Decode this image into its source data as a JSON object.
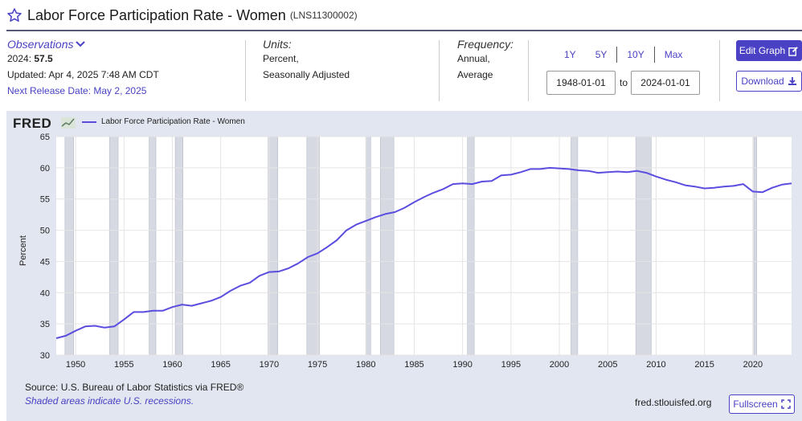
{
  "header": {
    "title": "Labor Force Participation Rate - Women",
    "series_id": "(LNS11300002)",
    "star_icon": "star-outline-icon"
  },
  "observations": {
    "heading": "Observations",
    "latest_label": "2024:",
    "latest_value": "57.5",
    "updated": "Updated: Apr 4, 2025 7:48 AM CDT",
    "next_release": "Next Release Date: May 2, 2025"
  },
  "units": {
    "heading": "Units:",
    "line1": "Percent,",
    "line2": "Seasonally Adjusted"
  },
  "frequency": {
    "heading": "Frequency:",
    "line1": "Annual,",
    "line2": "Average"
  },
  "range": {
    "links": [
      "1Y",
      "5Y",
      "10Y",
      "Max"
    ],
    "start": "1948-01-01",
    "to_label": "to",
    "end": "2024-01-01"
  },
  "buttons": {
    "edit_graph": "Edit Graph",
    "download": "Download",
    "fullscreen": "Fullscreen"
  },
  "chart_panel": {
    "logo": "FRED",
    "source": "Source: U.S. Bureau of Labor Statistics via FRED®",
    "recession_note": "Shaded areas indicate U.S. recessions.",
    "url": "fred.stlouisfed.org"
  },
  "colors": {
    "accent": "#4a41c4",
    "line": "#5b4de0",
    "panel_bg": "#e2e6f0",
    "recession": "#d6d9e2"
  },
  "chart_data": {
    "type": "line",
    "title": "",
    "xlabel": "",
    "ylabel": "Percent",
    "xlim": [
      1948,
      2024
    ],
    "ylim": [
      30,
      65
    ],
    "yticks": [
      30,
      35,
      40,
      45,
      50,
      55,
      60,
      65
    ],
    "xticks": [
      1950,
      1955,
      1960,
      1965,
      1970,
      1975,
      1980,
      1985,
      1990,
      1995,
      2000,
      2005,
      2010,
      2015,
      2020
    ],
    "grid": true,
    "legend": "top-left",
    "recessions": [
      [
        1948.9,
        1949.8
      ],
      [
        1953.5,
        1954.4
      ],
      [
        1957.6,
        1958.3
      ],
      [
        1960.3,
        1961.1
      ],
      [
        1969.9,
        1970.9
      ],
      [
        1973.9,
        1975.2
      ],
      [
        1980.0,
        1980.5
      ],
      [
        1981.5,
        1982.9
      ],
      [
        1990.5,
        1991.2
      ],
      [
        2001.2,
        2001.9
      ],
      [
        2007.9,
        2009.5
      ],
      [
        2020.1,
        2020.4
      ]
    ],
    "series": [
      {
        "name": "Labor Force Participation Rate - Women",
        "x": [
          1948,
          1949,
          1950,
          1951,
          1952,
          1953,
          1954,
          1955,
          1956,
          1957,
          1958,
          1959,
          1960,
          1961,
          1962,
          1963,
          1964,
          1965,
          1966,
          1967,
          1968,
          1969,
          1970,
          1971,
          1972,
          1973,
          1974,
          1975,
          1976,
          1977,
          1978,
          1979,
          1980,
          1981,
          1982,
          1983,
          1984,
          1985,
          1986,
          1987,
          1988,
          1989,
          1990,
          1991,
          1992,
          1993,
          1994,
          1995,
          1996,
          1997,
          1998,
          1999,
          2000,
          2001,
          2002,
          2003,
          2004,
          2005,
          2006,
          2007,
          2008,
          2009,
          2010,
          2011,
          2012,
          2013,
          2014,
          2015,
          2016,
          2017,
          2018,
          2019,
          2020,
          2021,
          2022,
          2023,
          2024
        ],
        "values": [
          32.7,
          33.1,
          33.9,
          34.6,
          34.7,
          34.4,
          34.6,
          35.7,
          36.9,
          36.9,
          37.1,
          37.1,
          37.7,
          38.1,
          37.9,
          38.3,
          38.7,
          39.3,
          40.3,
          41.1,
          41.6,
          42.7,
          43.3,
          43.4,
          43.9,
          44.7,
          45.7,
          46.3,
          47.3,
          48.4,
          50.0,
          50.9,
          51.5,
          52.1,
          52.6,
          52.9,
          53.6,
          54.5,
          55.3,
          56.0,
          56.6,
          57.4,
          57.5,
          57.4,
          57.8,
          57.9,
          58.8,
          58.9,
          59.3,
          59.8,
          59.8,
          60.0,
          59.9,
          59.8,
          59.6,
          59.5,
          59.2,
          59.3,
          59.4,
          59.3,
          59.5,
          59.2,
          58.6,
          58.1,
          57.7,
          57.2,
          57.0,
          56.7,
          56.8,
          57.0,
          57.1,
          57.4,
          56.2,
          56.1,
          56.8,
          57.3,
          57.5
        ]
      }
    ]
  }
}
